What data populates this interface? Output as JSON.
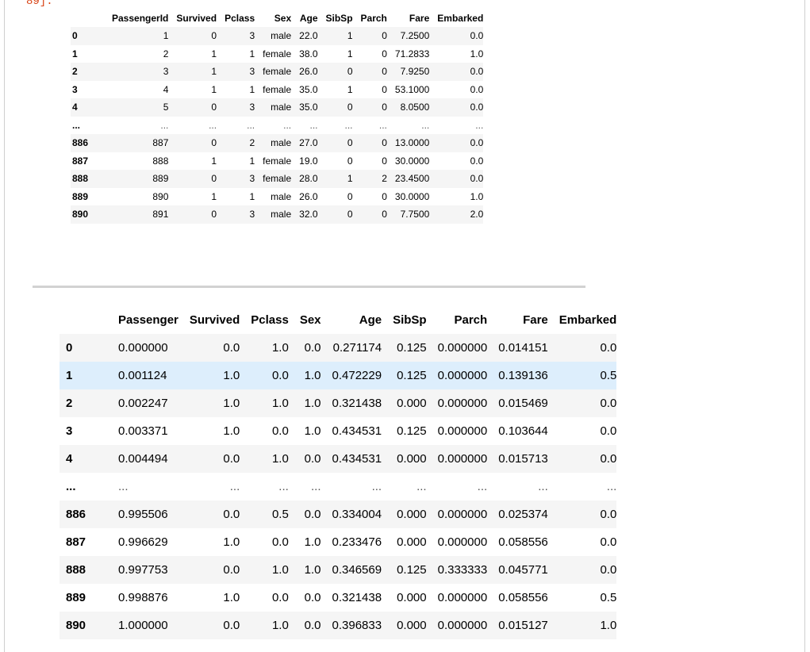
{
  "prompt": "89]:",
  "df_raw": {
    "columns": [
      "PassengerId",
      "Survived",
      "Pclass",
      "Sex",
      "Age",
      "SibSp",
      "Parch",
      "Fare",
      "Embarked"
    ],
    "rows": [
      {
        "idx": "0",
        "cells": [
          "1",
          "0",
          "3",
          "male",
          "22.0",
          "1",
          "0",
          "7.2500",
          "0.0"
        ]
      },
      {
        "idx": "1",
        "cells": [
          "2",
          "1",
          "1",
          "female",
          "38.0",
          "1",
          "0",
          "71.2833",
          "1.0"
        ]
      },
      {
        "idx": "2",
        "cells": [
          "3",
          "1",
          "3",
          "female",
          "26.0",
          "0",
          "0",
          "7.9250",
          "0.0"
        ]
      },
      {
        "idx": "3",
        "cells": [
          "4",
          "1",
          "1",
          "female",
          "35.0",
          "1",
          "0",
          "53.1000",
          "0.0"
        ]
      },
      {
        "idx": "4",
        "cells": [
          "5",
          "0",
          "3",
          "male",
          "35.0",
          "0",
          "0",
          "8.0500",
          "0.0"
        ]
      },
      {
        "idx": "...",
        "cells": [
          "...",
          "...",
          "...",
          "...",
          "...",
          "...",
          "...",
          "...",
          "..."
        ]
      },
      {
        "idx": "886",
        "cells": [
          "887",
          "0",
          "2",
          "male",
          "27.0",
          "0",
          "0",
          "13.0000",
          "0.0"
        ]
      },
      {
        "idx": "887",
        "cells": [
          "888",
          "1",
          "1",
          "female",
          "19.0",
          "0",
          "0",
          "30.0000",
          "0.0"
        ]
      },
      {
        "idx": "888",
        "cells": [
          "889",
          "0",
          "3",
          "female",
          "28.0",
          "1",
          "2",
          "23.4500",
          "0.0"
        ]
      },
      {
        "idx": "889",
        "cells": [
          "890",
          "1",
          "1",
          "male",
          "26.0",
          "0",
          "0",
          "30.0000",
          "1.0"
        ]
      },
      {
        "idx": "890",
        "cells": [
          "891",
          "0",
          "3",
          "male",
          "32.0",
          "0",
          "0",
          "7.7500",
          "2.0"
        ]
      }
    ]
  },
  "df_scaled": {
    "columns": [
      "Passenger",
      "Survived",
      "Pclass",
      "Sex",
      "Age",
      "SibSp",
      "Parch",
      "Fare",
      "Embarked"
    ],
    "rows": [
      {
        "idx": "0",
        "cells": [
          "0.000000",
          "0.0",
          "1.0",
          "0.0",
          "0.271174",
          "0.125",
          "0.000000",
          "0.014151",
          "0.0"
        ]
      },
      {
        "idx": "1",
        "cells": [
          "0.001124",
          "1.0",
          "0.0",
          "1.0",
          "0.472229",
          "0.125",
          "0.000000",
          "0.139136",
          "0.5"
        ]
      },
      {
        "idx": "2",
        "cells": [
          "0.002247",
          "1.0",
          "1.0",
          "1.0",
          "0.321438",
          "0.000",
          "0.000000",
          "0.015469",
          "0.0"
        ]
      },
      {
        "idx": "3",
        "cells": [
          "0.003371",
          "1.0",
          "0.0",
          "1.0",
          "0.434531",
          "0.125",
          "0.000000",
          "0.103644",
          "0.0"
        ]
      },
      {
        "idx": "4",
        "cells": [
          "0.004494",
          "0.0",
          "1.0",
          "0.0",
          "0.434531",
          "0.000",
          "0.000000",
          "0.015713",
          "0.0"
        ]
      },
      {
        "idx": "...",
        "cells": [
          "...",
          "...",
          "...",
          "...",
          "...",
          "...",
          "...",
          "...",
          "..."
        ]
      },
      {
        "idx": "886",
        "cells": [
          "0.995506",
          "0.0",
          "0.5",
          "0.0",
          "0.334004",
          "0.000",
          "0.000000",
          "0.025374",
          "0.0"
        ]
      },
      {
        "idx": "887",
        "cells": [
          "0.996629",
          "1.0",
          "0.0",
          "1.0",
          "0.233476",
          "0.000",
          "0.000000",
          "0.058556",
          "0.0"
        ]
      },
      {
        "idx": "888",
        "cells": [
          "0.997753",
          "0.0",
          "1.0",
          "1.0",
          "0.346569",
          "0.125",
          "0.333333",
          "0.045771",
          "0.0"
        ]
      },
      {
        "idx": "889",
        "cells": [
          "0.998876",
          "1.0",
          "0.0",
          "0.0",
          "0.321438",
          "0.000",
          "0.000000",
          "0.058556",
          "0.5"
        ]
      },
      {
        "idx": "890",
        "cells": [
          "1.000000",
          "0.0",
          "1.0",
          "0.0",
          "0.396833",
          "0.000",
          "0.000000",
          "0.015127",
          "1.0"
        ]
      }
    ],
    "highlighted_row": "1"
  }
}
